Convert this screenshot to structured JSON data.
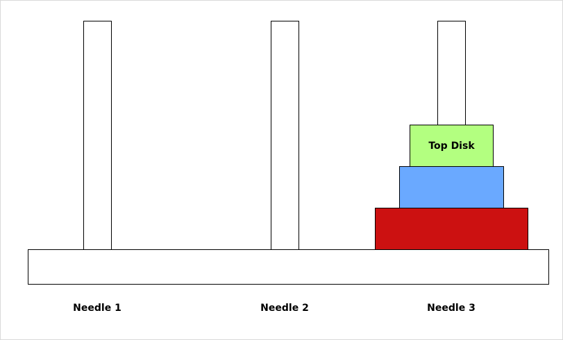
{
  "needles": [
    {
      "label": "Needle 1"
    },
    {
      "label": "Needle 2"
    },
    {
      "label": "Needle 3"
    }
  ],
  "disks": [
    {
      "label": "",
      "color": "#cc1111"
    },
    {
      "label": "",
      "color": "#6aa9ff"
    },
    {
      "label": "Top Disk",
      "color": "#b3ff80"
    }
  ],
  "colors": {
    "stroke": "#000000",
    "background": "#ffffff"
  }
}
